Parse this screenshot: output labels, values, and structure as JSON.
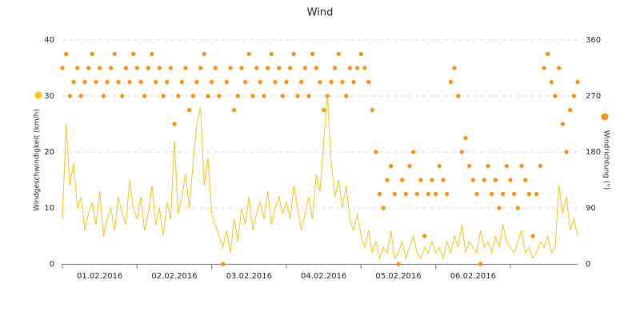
{
  "chart_data": {
    "type": "line-scatter",
    "title": "Wind",
    "x": [
      0,
      0.05,
      0.1,
      0.15,
      0.2,
      0.25,
      0.3,
      0.35,
      0.4,
      0.45,
      0.5,
      0.55,
      0.6,
      0.65,
      0.7,
      0.75,
      0.8,
      0.85,
      0.9,
      0.95,
      1,
      1.05,
      1.1,
      1.15,
      1.2,
      1.25,
      1.3,
      1.35,
      1.4,
      1.45,
      1.5,
      1.55,
      1.6,
      1.65,
      1.7,
      1.75,
      1.8,
      1.85,
      1.9,
      1.95,
      2,
      2.05,
      2.1,
      2.15,
      2.2,
      2.25,
      2.3,
      2.35,
      2.4,
      2.45,
      2.5,
      2.55,
      2.6,
      2.65,
      2.7,
      2.75,
      2.8,
      2.85,
      2.9,
      2.95,
      3,
      3.05,
      3.1,
      3.15,
      3.2,
      3.25,
      3.3,
      3.35,
      3.4,
      3.45,
      3.5,
      3.55,
      3.6,
      3.65,
      3.7,
      3.75,
      3.8,
      3.85,
      3.9,
      3.95,
      4,
      4.05,
      4.1,
      4.15,
      4.2,
      4.25,
      4.3,
      4.35,
      4.4,
      4.45,
      4.5,
      4.55,
      4.6,
      4.65,
      4.7,
      4.75,
      4.8,
      4.85,
      4.9,
      4.95,
      5,
      5.05,
      5.1,
      5.15,
      5.2,
      5.25,
      5.3,
      5.35,
      5.4,
      5.45,
      5.5,
      5.55,
      5.6,
      5.65,
      5.7,
      5.75,
      5.8,
      5.85,
      5.9,
      5.95,
      6,
      6.05,
      6.1,
      6.15,
      6.2,
      6.25,
      6.3,
      6.35,
      6.4,
      6.45,
      6.5,
      6.55,
      6.6,
      6.65,
      6.7,
      6.75,
      6.8,
      6.85,
      6.9
    ],
    "xlim": [
      0,
      6.9
    ],
    "xticks": [
      {
        "value": 0.5,
        "label": "01.02.2016"
      },
      {
        "value": 1.5,
        "label": "02.02.2016"
      },
      {
        "value": 2.5,
        "label": "03.02.2016"
      },
      {
        "value": 3.5,
        "label": "04.02.2016"
      },
      {
        "value": 4.5,
        "label": "05.02.2016"
      },
      {
        "value": 5.5,
        "label": "06.02.2016"
      }
    ],
    "ylim": [
      0,
      40
    ],
    "yticks": [
      0,
      10,
      20,
      30,
      40
    ],
    "y2lim": [
      0,
      360
    ],
    "y2ticks": [
      0,
      90,
      180,
      270,
      360
    ],
    "grid": true,
    "series": [
      {
        "name": "Windgeschwindigkeit (km/h)",
        "type": "line",
        "color": "#f7c21b",
        "values": [
          8,
          25,
          14,
          18,
          10,
          12,
          6,
          9,
          11,
          7,
          13,
          5,
          8,
          10,
          6,
          12,
          9,
          7,
          15,
          10,
          8,
          12,
          6,
          9,
          14,
          7,
          10,
          5,
          11,
          8,
          22,
          9,
          12,
          16,
          10,
          18,
          25,
          28,
          14,
          19,
          9,
          7,
          5,
          3,
          6,
          2,
          8,
          4,
          10,
          7,
          12,
          6,
          9,
          11,
          8,
          13,
          7,
          10,
          12,
          9,
          11,
          8,
          14,
          10,
          6,
          9,
          12,
          8,
          16,
          13,
          22,
          30,
          18,
          12,
          15,
          10,
          14,
          8,
          6,
          9,
          5,
          3,
          6,
          2,
          4,
          1,
          3,
          2,
          6,
          1,
          2,
          4,
          1,
          3,
          5,
          2,
          1,
          3,
          2,
          4,
          2,
          3,
          1,
          4,
          2,
          5,
          3,
          7,
          2,
          4,
          3,
          2,
          6,
          3,
          4,
          2,
          5,
          3,
          7,
          4,
          3,
          2,
          4,
          6,
          2,
          3,
          1,
          2,
          4,
          3,
          5,
          2,
          3,
          14,
          9,
          12,
          6,
          8,
          5
        ]
      },
      {
        "name": "Windrichtung (°)",
        "type": "scatter",
        "axis": "y2",
        "color": "#f7900d",
        "values": [
          315,
          337.5,
          270,
          292.5,
          315,
          270,
          292.5,
          315,
          337.5,
          292.5,
          315,
          270,
          292.5,
          315,
          337.5,
          292.5,
          270,
          315,
          292.5,
          337.5,
          315,
          292.5,
          270,
          315,
          337.5,
          292.5,
          315,
          270,
          292.5,
          315,
          225,
          270,
          292.5,
          315,
          247.5,
          270,
          292.5,
          315,
          337.5,
          270,
          292.5,
          315,
          270,
          0,
          292.5,
          315,
          247.5,
          270,
          315,
          292.5,
          337.5,
          270,
          315,
          292.5,
          270,
          315,
          337.5,
          292.5,
          315,
          270,
          292.5,
          315,
          337.5,
          270,
          292.5,
          315,
          270,
          337.5,
          315,
          292.5,
          247.5,
          270,
          292.5,
          315,
          337.5,
          292.5,
          270,
          315,
          292.5,
          315,
          337.5,
          315,
          292.5,
          247.5,
          180,
          112.5,
          90,
          135,
          157.5,
          112.5,
          0,
          135,
          112.5,
          157.5,
          180,
          112.5,
          135,
          45,
          112.5,
          135,
          112.5,
          157.5,
          135,
          112.5,
          292.5,
          315,
          270,
          180,
          202.5,
          157.5,
          135,
          112.5,
          0,
          135,
          157.5,
          112.5,
          135,
          90,
          112.5,
          157.5,
          135,
          112.5,
          90,
          157.5,
          135,
          112.5,
          45,
          112.5,
          157.5,
          315,
          337.5,
          292.5,
          270,
          315,
          225,
          180,
          247.5,
          270,
          292.5
        ]
      }
    ]
  }
}
